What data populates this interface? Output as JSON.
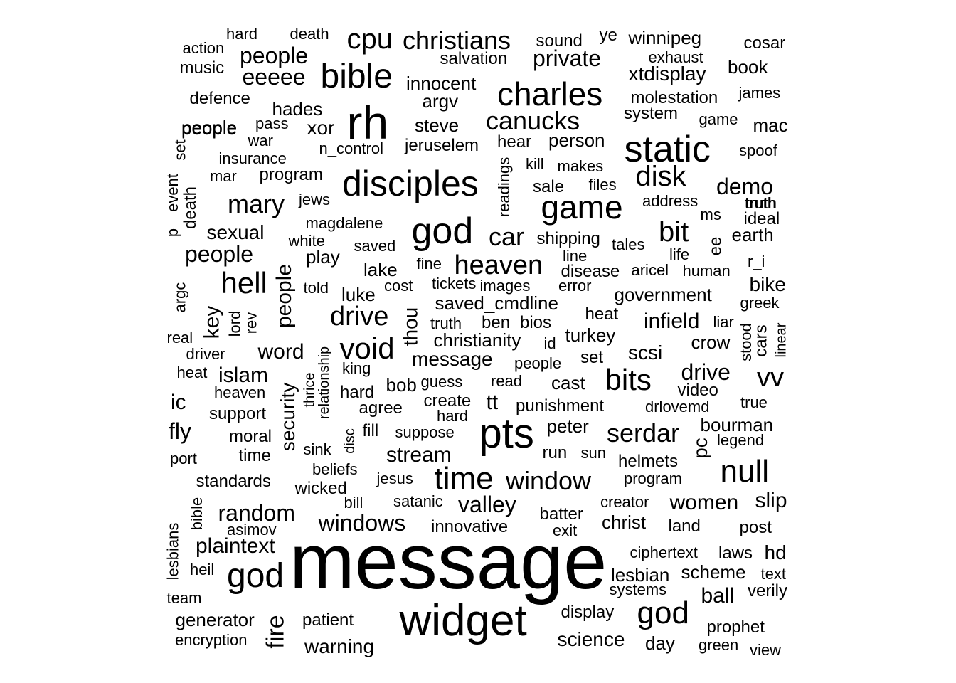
{
  "words": [
    {
      "text": "message"
    },
    {
      "text": "widget"
    },
    {
      "text": "pts"
    },
    {
      "text": "rh"
    },
    {
      "text": "static"
    },
    {
      "text": "disciples"
    },
    {
      "text": "game"
    },
    {
      "text": "god"
    },
    {
      "text": "charles"
    },
    {
      "text": "bible"
    },
    {
      "text": "time"
    },
    {
      "text": "null"
    },
    {
      "text": "god"
    },
    {
      "text": "god"
    },
    {
      "text": "window"
    },
    {
      "text": "hell"
    },
    {
      "text": "heaven"
    },
    {
      "text": "void"
    },
    {
      "text": "drive"
    },
    {
      "text": "bits"
    },
    {
      "text": "disk"
    },
    {
      "text": "canucks"
    },
    {
      "text": "car"
    },
    {
      "text": "bit"
    },
    {
      "text": "cpu"
    },
    {
      "text": "christians"
    },
    {
      "text": "serdar"
    },
    {
      "text": "mary"
    },
    {
      "text": "vv"
    },
    {
      "text": "people"
    },
    {
      "text": "random"
    },
    {
      "text": "valley"
    },
    {
      "text": "windows"
    },
    {
      "text": "plaintext"
    },
    {
      "text": "demo"
    },
    {
      "text": "drive"
    },
    {
      "text": "stream"
    },
    {
      "text": "fire"
    },
    {
      "text": "people"
    },
    {
      "text": "private"
    },
    {
      "text": "eeeee"
    },
    {
      "text": "people"
    },
    {
      "text": "word"
    },
    {
      "text": "islam"
    },
    {
      "text": "xtdisplay"
    },
    {
      "text": "slip"
    },
    {
      "text": "women"
    },
    {
      "text": "ball"
    },
    {
      "text": "infield"
    },
    {
      "text": "scsi"
    },
    {
      "text": "bike"
    },
    {
      "text": "key"
    },
    {
      "text": "security"
    },
    {
      "text": "fly"
    },
    {
      "text": "ic"
    },
    {
      "text": "thou"
    },
    {
      "text": "science"
    },
    {
      "text": "warning"
    },
    {
      "text": "message"
    },
    {
      "text": "saved_cmdline"
    },
    {
      "text": "christianity"
    },
    {
      "text": "government"
    },
    {
      "text": "person"
    },
    {
      "text": "steve"
    },
    {
      "text": "xor"
    },
    {
      "text": "sexual"
    },
    {
      "text": "people"
    },
    {
      "text": "hades"
    },
    {
      "text": "argv"
    },
    {
      "text": "innocent"
    },
    {
      "text": "earth"
    },
    {
      "text": "bourman"
    },
    {
      "text": "pc"
    },
    {
      "text": "christ"
    },
    {
      "text": "lesbian"
    },
    {
      "text": "scheme"
    },
    {
      "text": "hd"
    },
    {
      "text": "prophet"
    },
    {
      "text": "day"
    },
    {
      "text": "display"
    },
    {
      "text": "patient"
    },
    {
      "text": "generator"
    },
    {
      "text": "book"
    },
    {
      "text": "cosar"
    },
    {
      "text": "mac"
    },
    {
      "text": "winnipeg"
    },
    {
      "text": "ye"
    },
    {
      "text": "sound"
    },
    {
      "text": "salvation"
    },
    {
      "text": "molestation"
    },
    {
      "text": "system"
    },
    {
      "text": "exhaust"
    },
    {
      "text": "jeruselem"
    },
    {
      "text": "n_control"
    },
    {
      "text": "hear"
    },
    {
      "text": "readings"
    },
    {
      "text": "kill"
    },
    {
      "text": "makes"
    },
    {
      "text": "sale"
    },
    {
      "text": "files"
    },
    {
      "text": "address"
    },
    {
      "text": "truth"
    },
    {
      "text": "ms"
    },
    {
      "text": "ideal"
    },
    {
      "text": "ee"
    },
    {
      "text": "shipping"
    },
    {
      "text": "tales"
    },
    {
      "text": "line"
    },
    {
      "text": "life"
    },
    {
      "text": "disease"
    },
    {
      "text": "aricel"
    },
    {
      "text": "human"
    },
    {
      "text": "r_i"
    },
    {
      "text": "images"
    },
    {
      "text": "error"
    },
    {
      "text": "tickets"
    },
    {
      "text": "cost"
    },
    {
      "text": "greek"
    },
    {
      "text": "heat"
    },
    {
      "text": "ben"
    },
    {
      "text": "bios"
    },
    {
      "text": "liar"
    },
    {
      "text": "truth"
    },
    {
      "text": "turkey"
    },
    {
      "text": "stood"
    },
    {
      "text": "cars"
    },
    {
      "text": "linear"
    },
    {
      "text": "crow"
    },
    {
      "text": "id"
    },
    {
      "text": "set"
    },
    {
      "text": "people"
    },
    {
      "text": "video"
    },
    {
      "text": "cast"
    },
    {
      "text": "drlovemd"
    },
    {
      "text": "true"
    },
    {
      "text": "guess"
    },
    {
      "text": "read"
    },
    {
      "text": "create"
    },
    {
      "text": "hard"
    },
    {
      "text": "tt"
    },
    {
      "text": "punishment"
    },
    {
      "text": "peter"
    },
    {
      "text": "legend"
    },
    {
      "text": "run"
    },
    {
      "text": "sun"
    },
    {
      "text": "helmets"
    },
    {
      "text": "program"
    },
    {
      "text": "creator"
    },
    {
      "text": "batter"
    },
    {
      "text": "exit"
    },
    {
      "text": "land"
    },
    {
      "text": "post"
    },
    {
      "text": "ciphertext"
    },
    {
      "text": "laws"
    },
    {
      "text": "text"
    },
    {
      "text": "verily"
    },
    {
      "text": "systems"
    },
    {
      "text": "green"
    },
    {
      "text": "view"
    },
    {
      "text": "hard"
    },
    {
      "text": "death"
    },
    {
      "text": "action"
    },
    {
      "text": "music"
    },
    {
      "text": "people"
    },
    {
      "text": "defence"
    },
    {
      "text": "pass"
    },
    {
      "text": "war"
    },
    {
      "text": "set"
    },
    {
      "text": "insurance"
    },
    {
      "text": "mar"
    },
    {
      "text": "program"
    },
    {
      "text": "event"
    },
    {
      "text": "death"
    },
    {
      "text": "p"
    },
    {
      "text": "jews"
    },
    {
      "text": "magdalene"
    },
    {
      "text": "white"
    },
    {
      "text": "saved"
    },
    {
      "text": "play"
    },
    {
      "text": "lake"
    },
    {
      "text": "fine"
    },
    {
      "text": "told"
    },
    {
      "text": "luke"
    },
    {
      "text": "argc"
    },
    {
      "text": "lord"
    },
    {
      "text": "rev"
    },
    {
      "text": "real"
    },
    {
      "text": "driver"
    },
    {
      "text": "heat"
    },
    {
      "text": "relationship"
    },
    {
      "text": "thrice"
    },
    {
      "text": "king"
    },
    {
      "text": "bob"
    },
    {
      "text": "heaven"
    },
    {
      "text": "hard"
    },
    {
      "text": "agree"
    },
    {
      "text": "support"
    },
    {
      "text": "moral"
    },
    {
      "text": "disc"
    },
    {
      "text": "fill"
    },
    {
      "text": "suppose"
    },
    {
      "text": "port"
    },
    {
      "text": "time"
    },
    {
      "text": "sink"
    },
    {
      "text": "beliefs"
    },
    {
      "text": "jesus"
    },
    {
      "text": "standards"
    },
    {
      "text": "wicked"
    },
    {
      "text": "bill"
    },
    {
      "text": "satanic"
    },
    {
      "text": "innovative"
    },
    {
      "text": "bible"
    },
    {
      "text": "asimov"
    },
    {
      "text": "lesbians"
    },
    {
      "text": "heil"
    },
    {
      "text": "team"
    },
    {
      "text": "encryption"
    },
    {
      "text": "james"
    },
    {
      "text": "game"
    },
    {
      "text": "spoof"
    },
    {
      "text": "truth"
    }
  ]
}
